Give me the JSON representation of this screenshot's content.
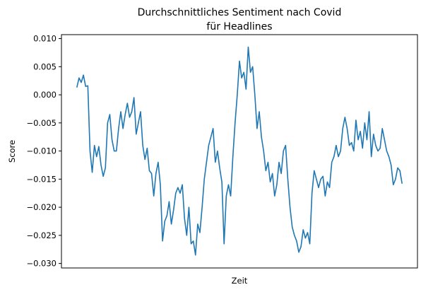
{
  "chart_data": {
    "type": "line",
    "title": "Durchschnittliches Sentiment nach Covid\nfür Headlines",
    "xlabel": "Zeit",
    "ylabel": "Score",
    "ylim": [
      -0.0308,
      0.0107
    ],
    "xlim": [
      -14,
      310
    ],
    "x_ticks_shown": false,
    "grid": false,
    "yticks": [
      "0.010",
      "0.005",
      "0.000",
      "−0.005",
      "−0.010",
      "−0.015",
      "−0.020",
      "−0.025",
      "−0.030"
    ],
    "series": [
      {
        "color": "#1f77b4",
        "x": [
          0,
          2,
          4,
          6,
          8,
          10,
          12,
          14,
          16,
          18,
          20,
          22,
          24,
          26,
          28,
          30,
          32,
          34,
          36,
          38,
          40,
          42,
          44,
          46,
          48,
          50,
          52,
          54,
          56,
          58,
          60,
          62,
          64,
          66,
          68,
          70,
          72,
          74,
          76,
          78,
          80,
          82,
          84,
          86,
          88,
          90,
          92,
          94,
          96,
          98,
          100,
          102,
          104,
          106,
          108,
          110,
          112,
          114,
          116,
          118,
          120,
          122,
          124,
          126,
          128,
          130,
          132,
          134,
          136,
          138,
          140,
          142,
          144,
          146,
          148,
          150,
          152,
          154,
          156,
          158,
          160,
          162,
          164,
          166,
          168,
          170,
          172,
          174,
          176,
          178,
          180,
          182,
          184,
          186,
          188,
          190,
          192,
          194,
          196,
          198,
          200,
          202,
          204,
          206,
          208,
          210,
          212,
          214,
          216,
          218,
          220,
          222,
          224,
          226,
          228,
          230,
          232,
          234,
          236,
          238,
          240,
          242,
          244,
          246,
          248,
          250,
          252,
          254,
          256,
          258,
          260,
          262,
          264,
          266,
          268,
          270,
          272,
          274,
          276,
          278,
          280,
          282,
          284,
          286,
          288,
          290,
          292,
          294,
          296
        ],
        "values": [
          0.0013,
          0.003,
          0.0022,
          0.0035,
          0.0015,
          0.0016,
          -0.01,
          -0.0138,
          -0.009,
          -0.011,
          -0.0092,
          -0.0125,
          -0.0145,
          -0.013,
          -0.005,
          -0.0035,
          -0.008,
          -0.01,
          -0.01,
          -0.006,
          -0.003,
          -0.006,
          -0.0035,
          -0.0015,
          -0.004,
          -0.003,
          -0.0005,
          -0.007,
          -0.005,
          -0.003,
          -0.009,
          -0.0115,
          -0.0095,
          -0.0135,
          -0.014,
          -0.018,
          -0.014,
          -0.012,
          -0.016,
          -0.026,
          -0.0225,
          -0.0215,
          -0.019,
          -0.023,
          -0.0205,
          -0.0175,
          -0.0165,
          -0.0175,
          -0.016,
          -0.022,
          -0.025,
          -0.02,
          -0.0265,
          -0.026,
          -0.0285,
          -0.023,
          -0.0245,
          -0.02,
          -0.015,
          -0.012,
          -0.009,
          -0.0075,
          -0.006,
          -0.012,
          -0.01,
          -0.013,
          -0.0155,
          -0.0265,
          -0.018,
          -0.016,
          -0.018,
          -0.011,
          -0.005,
          0.0,
          0.006,
          0.003,
          0.004,
          0.001,
          0.0085,
          0.004,
          0.005,
          0.0,
          -0.006,
          -0.003,
          -0.0075,
          -0.01,
          -0.0135,
          -0.012,
          -0.0155,
          -0.014,
          -0.018,
          -0.016,
          -0.012,
          -0.014,
          -0.01,
          -0.009,
          -0.015,
          -0.02,
          -0.0235,
          -0.025,
          -0.026,
          -0.028,
          -0.027,
          -0.024,
          -0.0255,
          -0.0245,
          -0.0265,
          -0.0175,
          -0.0135,
          -0.015,
          -0.0165,
          -0.015,
          -0.0145,
          -0.018,
          -0.0155,
          -0.0165,
          -0.012,
          -0.011,
          -0.009,
          -0.011,
          -0.01,
          -0.006,
          -0.004,
          -0.006,
          -0.009,
          -0.0085,
          -0.01,
          -0.0045,
          -0.008,
          -0.0065,
          -0.0095,
          -0.005,
          -0.008,
          -0.003,
          -0.011,
          -0.007,
          -0.009,
          -0.01,
          -0.0095,
          -0.006,
          -0.008,
          -0.01,
          -0.011,
          -0.0125,
          -0.016,
          -0.015,
          -0.013,
          -0.0135,
          -0.0158
        ]
      }
    ]
  }
}
